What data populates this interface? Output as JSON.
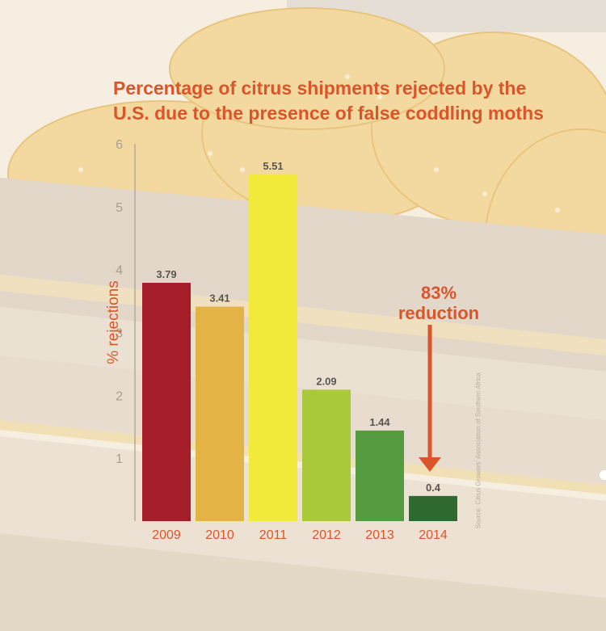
{
  "chart_data": {
    "type": "bar",
    "title": "Percentage of citrus shipments rejected by the U.S. due to the presence of false coddling moths",
    "title_lines": [
      "Percentage of citrus shipments rejected by the",
      "U.S. due to the presence of false coddling moths"
    ],
    "ylabel": "% rejections",
    "xlabel": "",
    "categories": [
      "2009",
      "2010",
      "2011",
      "2012",
      "2013",
      "2014"
    ],
    "values": [
      3.79,
      3.41,
      5.51,
      2.09,
      1.44,
      0.4
    ],
    "data_labels": [
      "3.79",
      "3.41",
      "5.51",
      "2.09",
      "1.44",
      "0.4"
    ],
    "bar_colors": [
      "#a61d2a",
      "#e3b345",
      "#f1ea3a",
      "#a9c83a",
      "#549c3f",
      "#2e6a30"
    ],
    "ylim": [
      0,
      6
    ],
    "yticks": [
      "1",
      "2",
      "3",
      "4",
      "5",
      "6"
    ],
    "grid": false,
    "legend": "none",
    "annotation": {
      "lines": [
        "83%",
        "reduction"
      ],
      "color": "#d9562b"
    },
    "source": "Source: Citrus Growers' Association of Southern Africa",
    "accent_color": "#d9562b"
  }
}
